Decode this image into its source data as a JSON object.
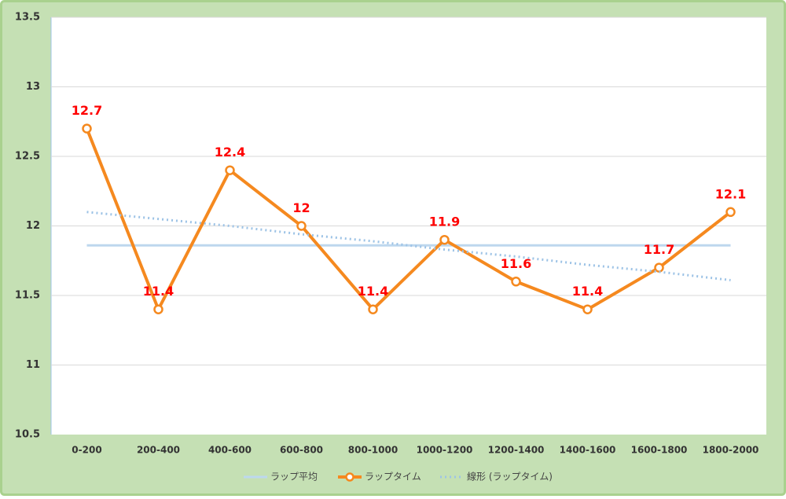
{
  "chart_data": {
    "type": "line",
    "categories": [
      "0-200",
      "200-400",
      "400-600",
      "600-800",
      "800-1000",
      "1000-1200",
      "1200-1400",
      "1400-1600",
      "1600-1800",
      "1800-2000"
    ],
    "series": [
      {
        "name": "ラップ平均",
        "color": "#bdd7ee",
        "style": "solid",
        "values": [
          11.86,
          11.86,
          11.86,
          11.86,
          11.86,
          11.86,
          11.86,
          11.86,
          11.86,
          11.86
        ]
      },
      {
        "name": "ラップタイム",
        "color": "#f5891f",
        "style": "marker",
        "values": [
          12.7,
          11.4,
          12.4,
          12,
          11.4,
          11.9,
          11.6,
          11.4,
          11.7,
          12.1
        ],
        "labels": true
      },
      {
        "name": "線形 (ラップタイム)",
        "color": "#9dc3e6",
        "style": "dotted",
        "values": [
          12.1,
          12.05,
          12.0,
          11.94,
          11.89,
          11.83,
          11.78,
          11.72,
          11.67,
          11.61
        ]
      }
    ],
    "ylim": [
      10.5,
      13.5
    ],
    "yticks": [
      10.5,
      11,
      11.5,
      12,
      12.5,
      13,
      13.5
    ],
    "grid": true,
    "legend": "bottom"
  }
}
